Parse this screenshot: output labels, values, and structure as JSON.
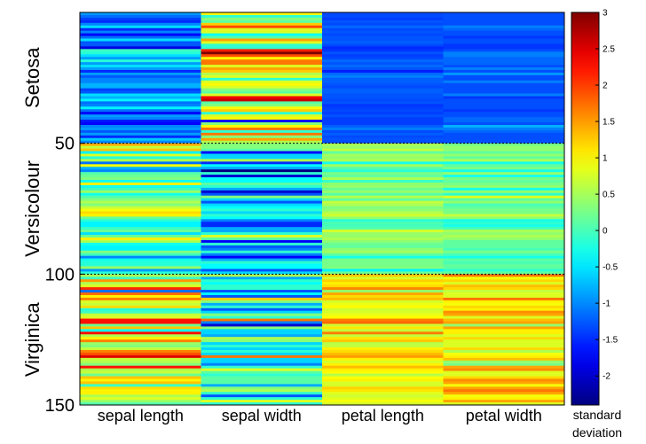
{
  "chart_data": {
    "type": "heatmap",
    "columns": [
      "sepal length",
      "sepal width",
      "petal length",
      "petal width"
    ],
    "rows": 150,
    "row_ticks": [
      "50",
      "100",
      "150"
    ],
    "row_tick_values": [
      50,
      100,
      150
    ],
    "groups": [
      {
        "label": "Setosa",
        "start": 1,
        "end": 50
      },
      {
        "label": "Versicolour",
        "start": 51,
        "end": 100
      },
      {
        "label": "Virginica",
        "start": 101,
        "end": 150
      }
    ],
    "value_range": [
      -2.4,
      3.0
    ],
    "colormap": "jet",
    "colorbar": {
      "ticks": [
        "3",
        "2.5",
        "2",
        "1.5",
        "1",
        "0.5",
        "0",
        "-0.5",
        "-1",
        "-1.5",
        "-2"
      ],
      "tick_values": [
        3,
        2.5,
        2,
        1.5,
        1,
        0.5,
        0,
        -0.5,
        -1,
        -1.5,
        -2
      ],
      "label_line1": "standard",
      "label_line2": "deviation"
    },
    "values": [
      [
        -0.9,
        1.0,
        -1.34,
        -1.31
      ],
      [
        -1.14,
        -0.13,
        -1.34,
        -1.31
      ],
      [
        -1.38,
        0.33,
        -1.4,
        -1.31
      ],
      [
        -1.5,
        0.1,
        -1.28,
        -1.31
      ],
      [
        -1.02,
        1.25,
        -1.34,
        -1.31
      ],
      [
        -0.54,
        1.93,
        -1.17,
        -1.05
      ],
      [
        -1.5,
        0.79,
        -1.34,
        -1.18
      ],
      [
        -1.02,
        0.79,
        -1.28,
        -1.31
      ],
      [
        -1.74,
        -0.36,
        -1.34,
        -1.31
      ],
      [
        -1.14,
        0.1,
        -1.28,
        -1.44
      ],
      [
        -0.54,
        1.47,
        -1.28,
        -1.31
      ],
      [
        -1.26,
        0.79,
        -1.22,
        -1.31
      ],
      [
        -1.26,
        -0.13,
        -1.34,
        -1.44
      ],
      [
        -1.87,
        -0.13,
        -1.51,
        -1.44
      ],
      [
        -0.05,
        2.16,
        -1.45,
        -1.31
      ],
      [
        -0.17,
        3.07,
        -1.28,
        -1.05
      ],
      [
        -0.54,
        1.93,
        -1.4,
        -1.05
      ],
      [
        -0.9,
        1.0,
        -1.34,
        -1.18
      ],
      [
        -0.17,
        1.7,
        -1.17,
        -1.18
      ],
      [
        -0.9,
        1.7,
        -1.28,
        -1.18
      ],
      [
        -0.54,
        0.79,
        -1.17,
        -1.31
      ],
      [
        -0.9,
        1.47,
        -1.28,
        -1.05
      ],
      [
        -1.5,
        1.25,
        -1.57,
        -1.31
      ],
      [
        -0.9,
        0.56,
        -1.17,
        -0.92
      ],
      [
        -1.26,
        0.79,
        -1.05,
        -1.31
      ],
      [
        -1.02,
        -0.13,
        -1.22,
        -1.31
      ],
      [
        -1.02,
        0.79,
        -1.22,
        -1.05
      ],
      [
        -0.78,
        1.0,
        -1.28,
        -1.31
      ],
      [
        -0.78,
        0.79,
        -1.34,
        -1.31
      ],
      [
        -1.38,
        0.33,
        -1.22,
        -1.31
      ],
      [
        -1.26,
        0.1,
        -1.22,
        -1.31
      ],
      [
        -0.54,
        0.79,
        -1.28,
        -1.05
      ],
      [
        -0.78,
        2.39,
        -1.28,
        -1.44
      ],
      [
        -0.42,
        2.62,
        -1.34,
        -1.31
      ],
      [
        -1.14,
        0.1,
        -1.28,
        -1.31
      ],
      [
        -1.02,
        0.33,
        -1.45,
        -1.31
      ],
      [
        -0.42,
        1.0,
        -1.4,
        -1.31
      ],
      [
        -1.14,
        1.25,
        -1.34,
        -1.44
      ],
      [
        -1.74,
        -0.13,
        -1.4,
        -1.31
      ],
      [
        -0.9,
        0.79,
        -1.28,
        -1.31
      ],
      [
        -1.02,
        1.0,
        -1.4,
        -1.18
      ],
      [
        -1.62,
        -1.74,
        -1.4,
        -1.18
      ],
      [
        -1.74,
        0.33,
        -1.4,
        -1.31
      ],
      [
        -1.02,
        1.0,
        -1.22,
        -0.79
      ],
      [
        -0.9,
        1.7,
        -1.05,
        -1.05
      ],
      [
        -1.26,
        -0.13,
        -1.34,
        -1.18
      ],
      [
        -0.9,
        1.7,
        -1.22,
        -1.31
      ],
      [
        -1.5,
        0.33,
        -1.34,
        -1.31
      ],
      [
        -0.66,
        1.47,
        -1.28,
        -1.31
      ],
      [
        -1.02,
        0.56,
        -1.34,
        -1.31
      ],
      [
        1.4,
        0.33,
        0.54,
        0.26
      ],
      [
        0.67,
        0.33,
        0.42,
        0.4
      ],
      [
        1.28,
        0.1,
        0.65,
        0.4
      ],
      [
        -0.42,
        -1.74,
        0.14,
        0.13
      ],
      [
        0.79,
        -0.59,
        0.48,
        0.4
      ],
      [
        -0.17,
        -0.59,
        0.42,
        0.13
      ],
      [
        0.55,
        0.56,
        0.54,
        0.53
      ],
      [
        -1.14,
        -1.51,
        -0.26,
        -0.26
      ],
      [
        0.92,
        -0.36,
        0.48,
        0.13
      ],
      [
        -0.78,
        -0.82,
        0.08,
        0.26
      ],
      [
        -1.02,
        -2.43,
        -0.15,
        -0.26
      ],
      [
        0.07,
        -0.13,
        0.25,
        0.4
      ],
      [
        0.19,
        -1.97,
        0.14,
        -0.26
      ],
      [
        0.31,
        -0.36,
        0.54,
        0.26
      ],
      [
        -0.29,
        -0.36,
        -0.09,
        0.13
      ],
      [
        1.04,
        0.1,
        0.37,
        0.26
      ],
      [
        -0.29,
        -0.13,
        0.42,
        0.4
      ],
      [
        -0.05,
        -0.82,
        0.19,
        -0.26
      ],
      [
        0.43,
        -1.97,
        0.42,
        0.4
      ],
      [
        -0.29,
        -1.28,
        0.08,
        -0.13
      ],
      [
        0.07,
        0.33,
        0.59,
        0.79
      ],
      [
        0.31,
        -0.59,
        0.14,
        0.13
      ],
      [
        0.55,
        -1.28,
        0.65,
        0.4
      ],
      [
        0.31,
        -0.59,
        0.54,
        0.0
      ],
      [
        0.67,
        -0.36,
        0.31,
        0.13
      ],
      [
        0.92,
        -0.13,
        0.37,
        0.26
      ],
      [
        1.16,
        -0.59,
        0.59,
        0.26
      ],
      [
        1.04,
        -0.13,
        0.71,
        0.66
      ],
      [
        0.19,
        -0.36,
        0.42,
        0.4
      ],
      [
        -0.17,
        -1.05,
        -0.15,
        -0.26
      ],
      [
        -0.42,
        -1.51,
        0.02,
        -0.13
      ],
      [
        -0.42,
        -1.51,
        -0.03,
        -0.26
      ],
      [
        -0.05,
        -0.82,
        0.08,
        0.0
      ],
      [
        0.19,
        -0.82,
        0.76,
        0.53
      ],
      [
        -0.54,
        -0.13,
        0.42,
        0.4
      ],
      [
        0.19,
        0.79,
        0.42,
        0.53
      ],
      [
        1.04,
        0.1,
        0.54,
        0.4
      ],
      [
        0.55,
        -1.74,
        0.37,
        0.13
      ],
      [
        -0.29,
        -0.13,
        0.19,
        0.13
      ],
      [
        -0.42,
        -1.28,
        0.14,
        0.13
      ],
      [
        -0.42,
        -1.05,
        0.37,
        0.0
      ],
      [
        0.31,
        -0.13,
        0.48,
        0.26
      ],
      [
        -0.05,
        -1.05,
        0.14,
        0.0
      ],
      [
        -1.02,
        -1.74,
        -0.26,
        -0.26
      ],
      [
        -0.29,
        -0.82,
        0.25,
        0.13
      ],
      [
        -0.17,
        -0.13,
        0.25,
        0.0
      ],
      [
        -0.17,
        -0.36,
        0.25,
        0.13
      ],
      [
        0.43,
        -0.36,
        0.31,
        0.13
      ],
      [
        -0.9,
        -1.28,
        -0.43,
        -0.13
      ],
      [
        -0.17,
        -0.59,
        0.19,
        0.13
      ],
      [
        0.55,
        0.56,
        1.27,
        1.71
      ],
      [
        -0.05,
        -0.82,
        0.76,
        0.92
      ],
      [
        1.52,
        -0.13,
        1.22,
        1.18
      ],
      [
        0.55,
        -0.36,
        1.05,
        0.79
      ],
      [
        0.79,
        -0.13,
        1.16,
        1.32
      ],
      [
        2.12,
        -0.13,
        1.61,
        1.18
      ],
      [
        -1.14,
        -1.28,
        0.42,
        0.66
      ],
      [
        1.77,
        -0.36,
        1.44,
        0.79
      ],
      [
        1.04,
        -1.28,
        1.16,
        0.79
      ],
      [
        1.64,
        1.25,
        1.33,
        1.71
      ],
      [
        0.79,
        0.33,
        0.76,
        1.05
      ],
      [
        0.67,
        -0.82,
        0.88,
        0.92
      ],
      [
        1.16,
        -0.13,
        0.99,
        1.18
      ],
      [
        -0.17,
        -1.28,
        0.71,
        1.05
      ],
      [
        -0.05,
        -0.59,
        0.76,
        1.58
      ],
      [
        0.67,
        0.33,
        0.88,
        1.45
      ],
      [
        0.79,
        -0.13,
        0.99,
        0.79
      ],
      [
        2.25,
        1.7,
        1.67,
        1.32
      ],
      [
        2.25,
        -1.05,
        1.78,
        1.45
      ],
      [
        0.19,
        -1.97,
        0.71,
        0.4
      ],
      [
        1.28,
        0.33,
        1.1,
        1.45
      ],
      [
        -0.29,
        -0.59,
        0.65,
        1.05
      ],
      [
        2.25,
        -0.59,
        1.67,
        1.05
      ],
      [
        0.55,
        -0.82,
        0.65,
        0.79
      ],
      [
        1.04,
        0.56,
        1.1,
        1.18
      ],
      [
        1.64,
        0.33,
        1.27,
        0.79
      ],
      [
        0.43,
        -0.59,
        0.59,
        0.79
      ],
      [
        0.31,
        -0.13,
        0.65,
        0.79
      ],
      [
        0.67,
        -0.59,
        1.05,
        1.18
      ],
      [
        1.64,
        -0.13,
        1.16,
        0.53
      ],
      [
        1.89,
        -0.59,
        1.33,
        0.92
      ],
      [
        2.49,
        1.7,
        1.5,
        1.05
      ],
      [
        0.67,
        -0.59,
        1.05,
        1.32
      ],
      [
        0.55,
        -0.59,
        0.76,
        0.4
      ],
      [
        0.31,
        -1.05,
        1.05,
        0.26
      ],
      [
        2.25,
        -0.13,
        1.33,
        1.45
      ],
      [
        0.55,
        0.79,
        1.05,
        1.58
      ],
      [
        0.67,
        0.1,
        0.99,
        0.79
      ],
      [
        0.19,
        -0.13,
        0.59,
        0.79
      ],
      [
        1.28,
        0.1,
        0.93,
        1.18
      ],
      [
        1.04,
        0.1,
        1.05,
        1.58
      ],
      [
        1.28,
        0.1,
        0.76,
        1.45
      ],
      [
        -0.05,
        -0.82,
        0.76,
        0.92
      ],
      [
        1.16,
        0.33,
        1.22,
        1.45
      ],
      [
        1.04,
        0.56,
        1.1,
        1.71
      ],
      [
        1.04,
        -0.13,
        0.82,
        1.45
      ],
      [
        0.55,
        -1.28,
        0.71,
        0.92
      ],
      [
        0.79,
        -0.13,
        0.82,
        1.05
      ],
      [
        0.43,
        0.79,
        0.93,
        1.45
      ],
      [
        0.07,
        -0.13,
        0.76,
        0.79
      ]
    ]
  }
}
